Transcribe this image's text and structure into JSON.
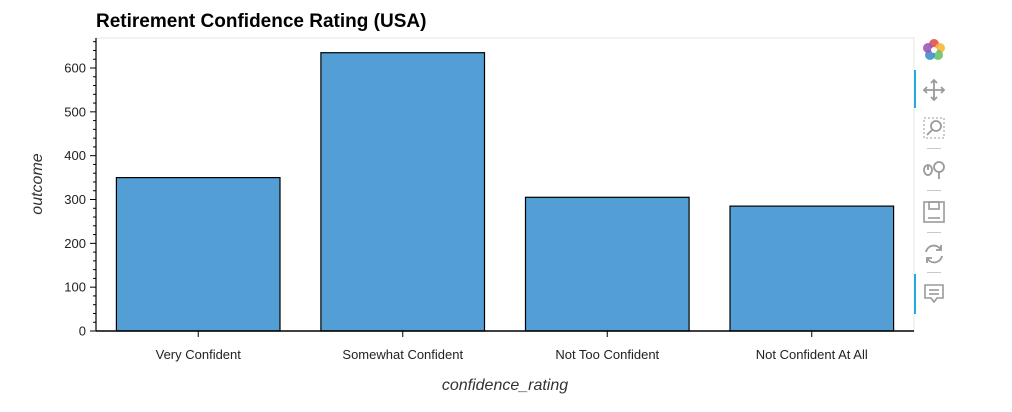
{
  "chart_data": {
    "type": "bar",
    "title": "Retirement Confidence Rating (USA)",
    "xlabel": "confidence_rating",
    "ylabel": "outcome",
    "categories": [
      "Very Confident",
      "Somewhat Confident",
      "Not Too Confident",
      "Not Confident At All"
    ],
    "values": [
      350,
      635,
      305,
      285
    ],
    "ylim": [
      0,
      660
    ],
    "yticks": [
      0,
      100,
      200,
      300,
      400,
      500,
      600
    ],
    "grid": false,
    "bar_color": "#539fd5",
    "bar_edge_color": "#000000"
  },
  "toolbar": {
    "tools": [
      {
        "name": "bokeh-logo-icon",
        "active": false
      },
      {
        "name": "pan-icon",
        "active": true
      },
      {
        "name": "box-zoom-icon",
        "active": false
      },
      {
        "name": "wheel-zoom-icon",
        "active": false
      },
      {
        "name": "save-icon",
        "active": false
      },
      {
        "name": "reset-icon",
        "active": false
      },
      {
        "name": "hover-icon",
        "active": true
      }
    ]
  }
}
